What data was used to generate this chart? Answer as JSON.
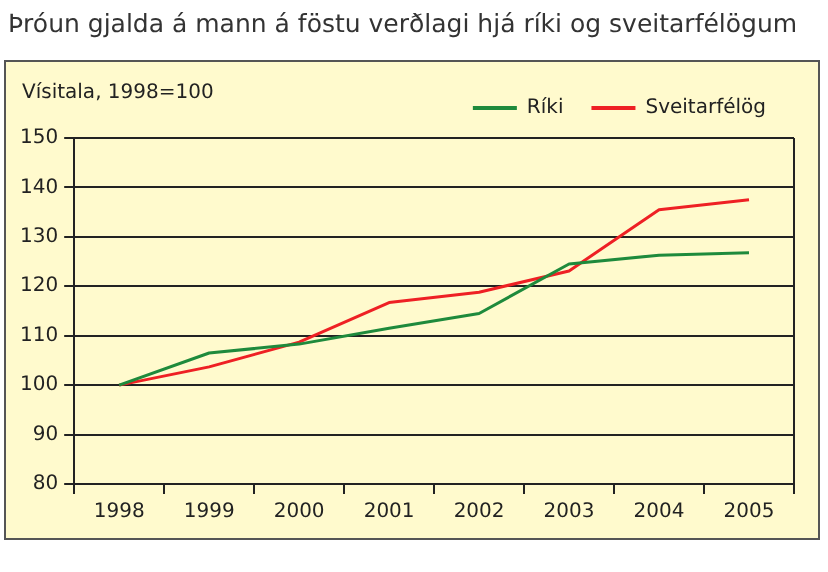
{
  "chart_data": {
    "type": "line",
    "title": "Þróun gjalda á mann á föstu verðlagi hjá ríki og sveitarfélögum",
    "ylabel": "Vísitala, 1998=100",
    "categories": [
      "1998",
      "1999",
      "2000",
      "2001",
      "2002",
      "2003",
      "2004",
      "2005"
    ],
    "series": [
      {
        "name": "Ríki",
        "color": "#1e8a3c",
        "values": [
          100,
          106.5,
          108.3,
          111.5,
          114.5,
          124.5,
          126.3,
          126.8
        ]
      },
      {
        "name": "Sveitarfélög",
        "color": "#ee2024",
        "values": [
          100,
          103.7,
          108.7,
          116.7,
          118.8,
          123.1,
          135.5,
          137.5
        ]
      }
    ],
    "ylim": [
      80,
      150
    ],
    "yticks": [
      80,
      90,
      100,
      110,
      120,
      130,
      140,
      150
    ],
    "grid": "y",
    "legend": "top right",
    "marker": "none",
    "line_style": "solid"
  }
}
